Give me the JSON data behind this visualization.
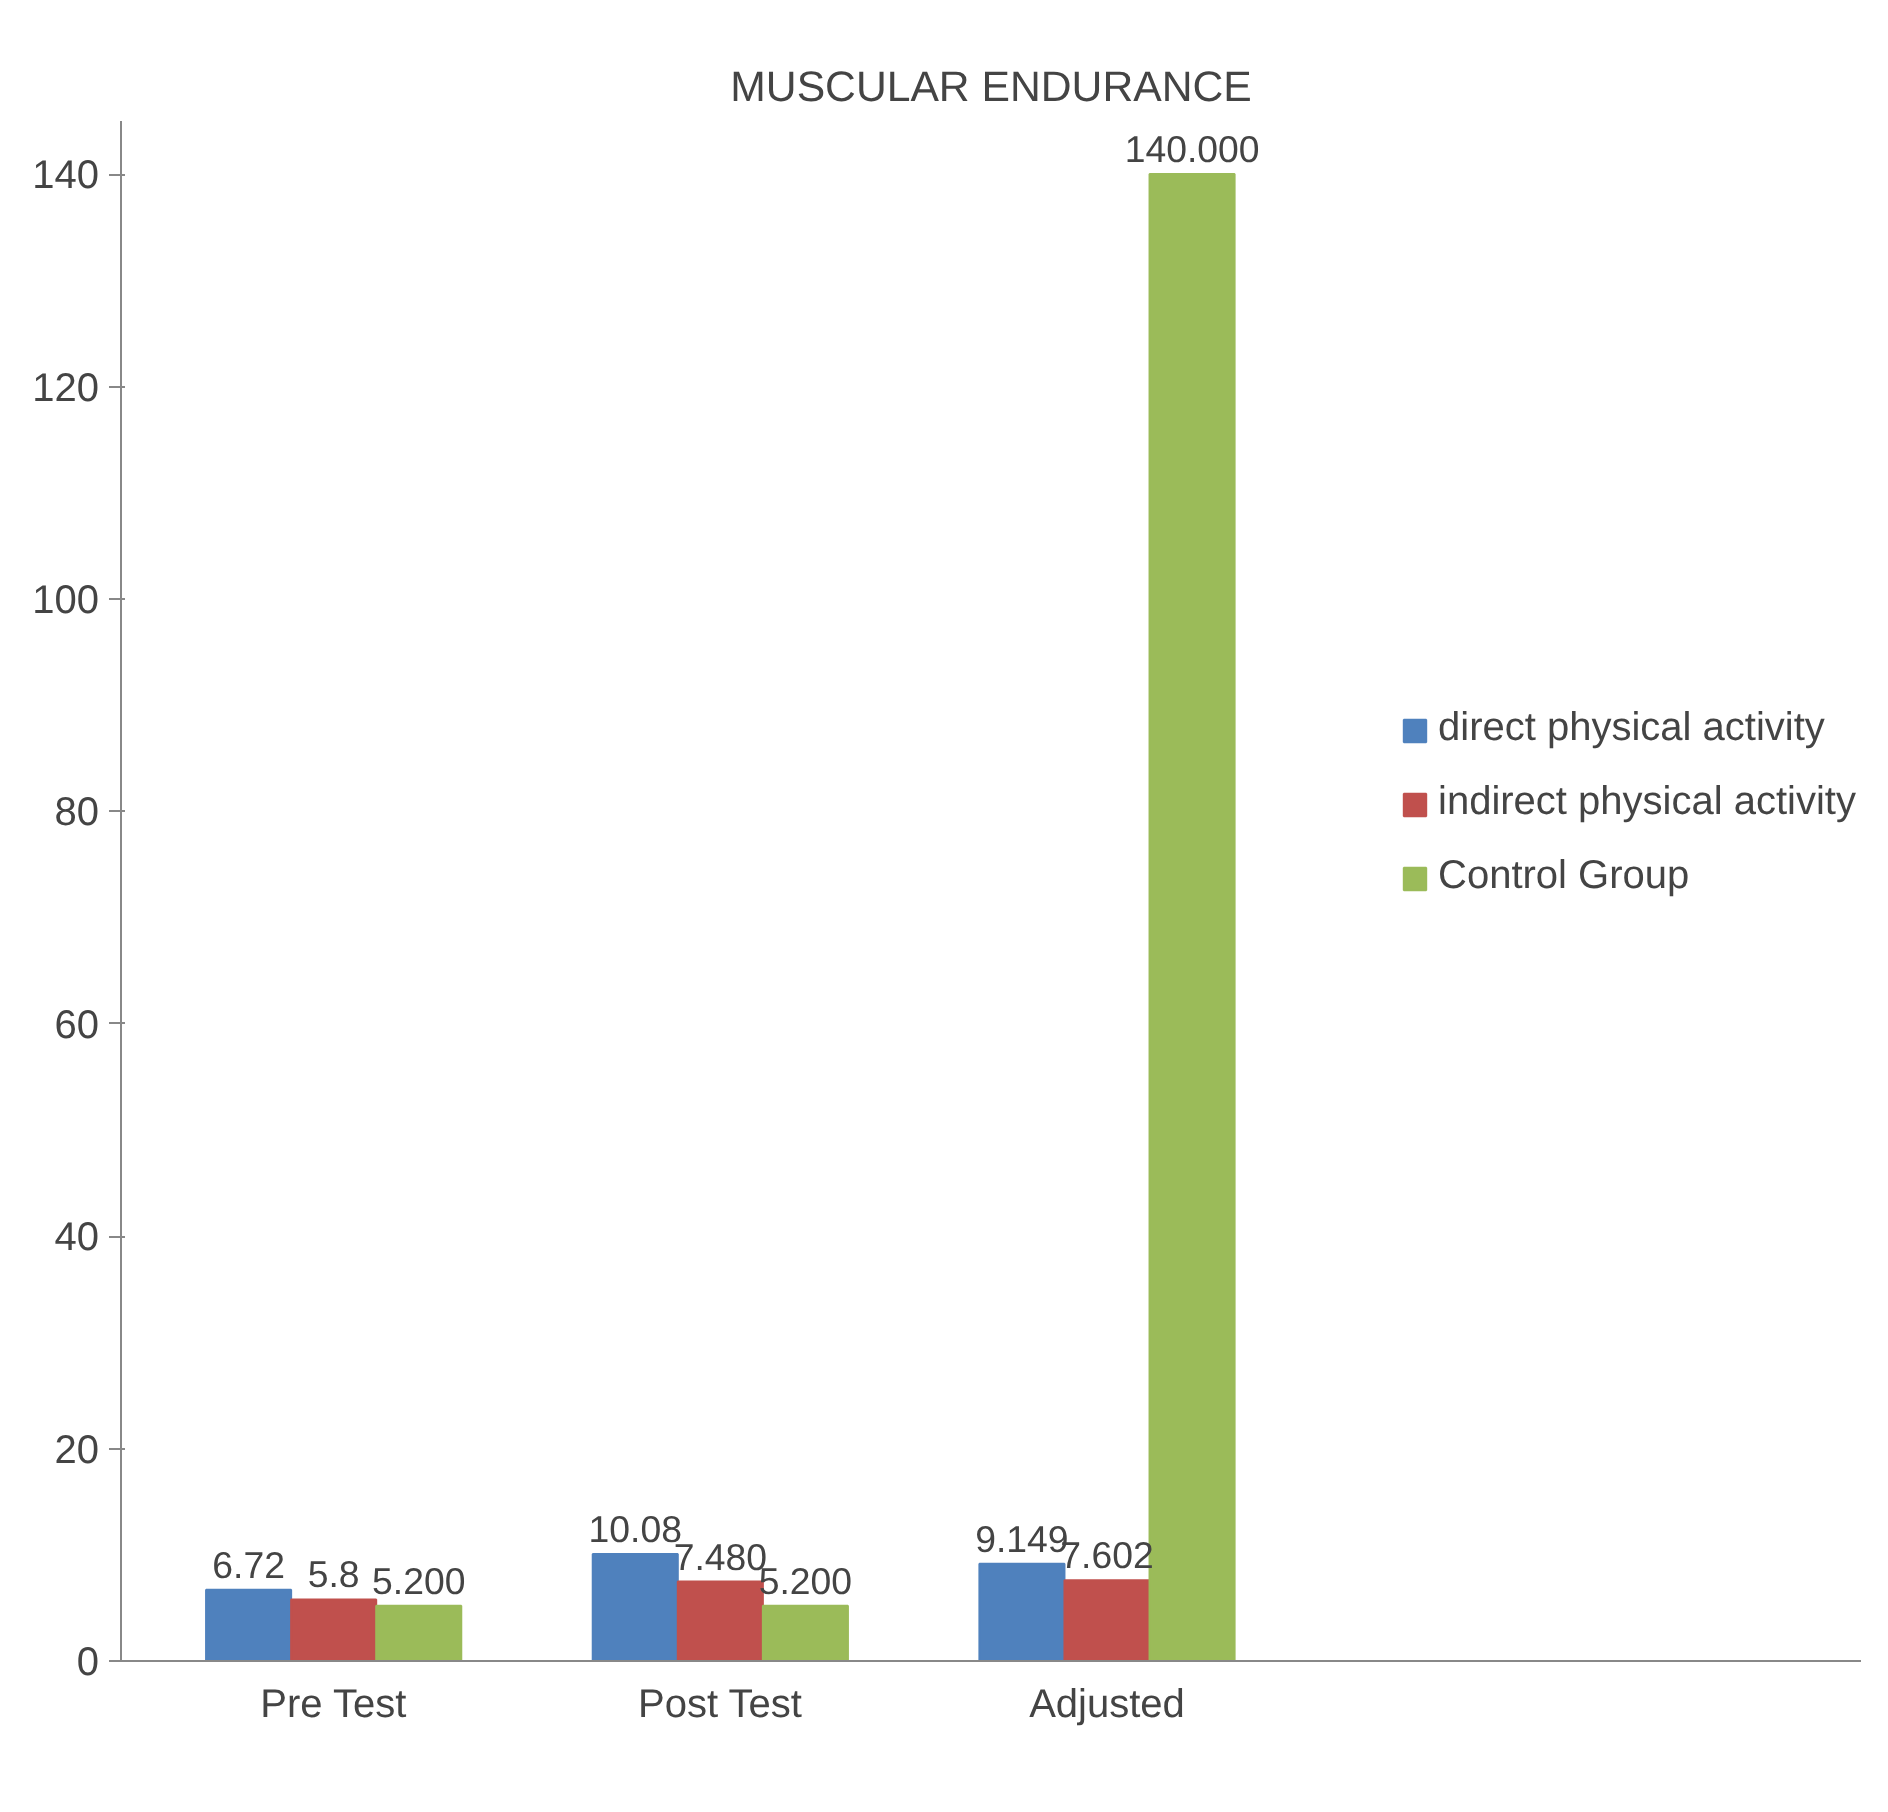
{
  "chart_data": {
    "type": "bar",
    "title": "MUSCULAR ENDURANCE",
    "categories": [
      "Pre Test",
      "Post Test",
      "Adjusted"
    ],
    "series": [
      {
        "name": "direct physical activity",
        "color": "#4f81bd",
        "values": [
          6.72,
          10.08,
          9.149
        ],
        "value_labels": [
          "6.72",
          "10.08",
          "9.149"
        ]
      },
      {
        "name": "indirect physical activity",
        "color": "#c0504d",
        "values": [
          5.8,
          7.48,
          7.602
        ],
        "value_labels": [
          "5.8",
          "7.480",
          "7.602"
        ]
      },
      {
        "name": "Control Group",
        "color": "#9bbb59",
        "values": [
          5.2,
          5.2,
          140.0
        ],
        "value_labels": [
          "5.200",
          "5.200",
          "140.000"
        ]
      }
    ],
    "ylim": [
      0,
      145
    ],
    "yticks": [
      0,
      20,
      40,
      60,
      80,
      100,
      120,
      140
    ],
    "grid": false,
    "legend": "right"
  }
}
